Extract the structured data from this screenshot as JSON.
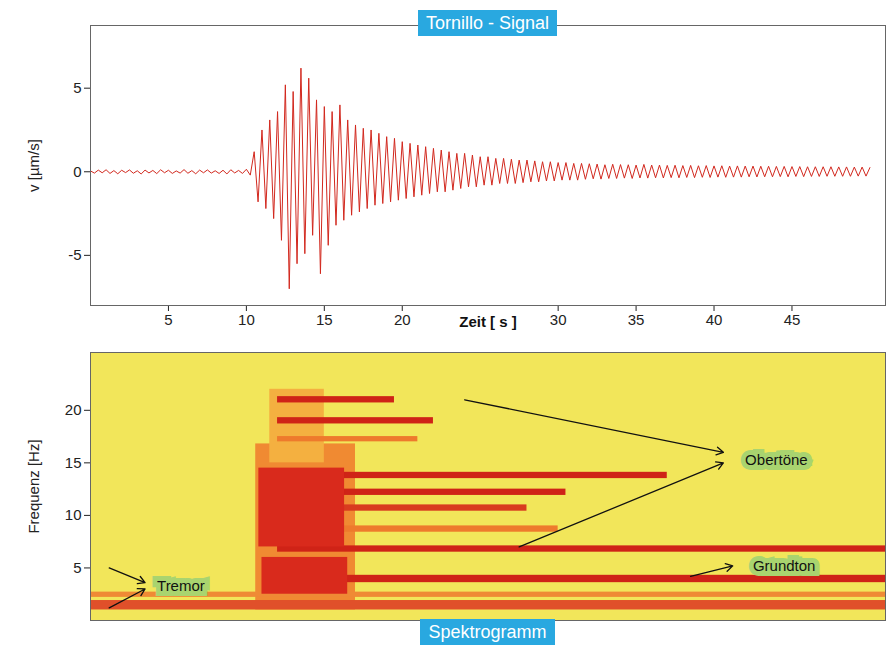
{
  "chart_data": [
    {
      "type": "line",
      "title": "Tornillo - Signal",
      "x_label": "Zeit [ s ]",
      "y_label": "v [µm/s]",
      "x": [
        0,
        0.25,
        0.5,
        0.75,
        1,
        1.25,
        1.5,
        1.75,
        2,
        2.25,
        2.5,
        2.75,
        3,
        3.25,
        3.5,
        3.75,
        4,
        4.25,
        4.5,
        4.75,
        5,
        5.25,
        5.5,
        5.75,
        6,
        6.25,
        6.5,
        6.75,
        7,
        7.25,
        7.5,
        7.75,
        8,
        8.25,
        8.5,
        8.75,
        9,
        9.25,
        9.5,
        9.75,
        10,
        10.25,
        10.5,
        10.75,
        11,
        11.25,
        11.5,
        11.75,
        12,
        12.25,
        12.5,
        12.75,
        13,
        13.25,
        13.5,
        13.75,
        14,
        14.25,
        14.5,
        14.75,
        15,
        15.25,
        15.5,
        15.75,
        16,
        16.25,
        16.5,
        16.75,
        17,
        17.25,
        17.5,
        17.75,
        18,
        18.25,
        18.5,
        18.75,
        19,
        19.25,
        19.5,
        19.75,
        20,
        20.25,
        20.5,
        20.75,
        21,
        21.25,
        21.5,
        21.75,
        22,
        22.25,
        22.5,
        22.75,
        23,
        23.25,
        23.5,
        23.75,
        24,
        24.25,
        24.5,
        24.75,
        25,
        25.25,
        25.5,
        25.75,
        26,
        26.25,
        26.5,
        26.75,
        27,
        27.25,
        27.5,
        27.75,
        28,
        28.25,
        28.5,
        28.75,
        29,
        29.25,
        29.5,
        29.75,
        30,
        30.25,
        30.5,
        30.75,
        31,
        31.25,
        31.5,
        31.75,
        32,
        32.25,
        32.5,
        32.75,
        33,
        33.25,
        33.5,
        33.75,
        34,
        34.25,
        34.5,
        34.75,
        35,
        35.25,
        35.5,
        35.75,
        36,
        36.25,
        36.5,
        36.75,
        37,
        37.25,
        37.5,
        37.75,
        38,
        38.25,
        38.5,
        38.75,
        39,
        39.25,
        39.5,
        39.75,
        40,
        40.25,
        40.5,
        40.75,
        41,
        41.25,
        41.5,
        41.75,
        42,
        42.25,
        42.5,
        42.75,
        43,
        43.25,
        43.5,
        43.75,
        44,
        44.25,
        44.5,
        44.75,
        45,
        45.25,
        45.5,
        45.75,
        46,
        46.25,
        46.5,
        46.75,
        47,
        47.25,
        47.5,
        47.75,
        48,
        48.25,
        48.5,
        48.75,
        49,
        49.25,
        49.5,
        49.75,
        50
      ],
      "values": [
        0.05,
        -0.08,
        0.1,
        -0.06,
        0.12,
        -0.1,
        0.07,
        -0.12,
        0.09,
        -0.05,
        0.11,
        -0.09,
        0.06,
        -0.13,
        0.1,
        -0.07,
        0.08,
        -0.11,
        0.12,
        -0.06,
        0.09,
        -0.1,
        0.05,
        -0.08,
        0.13,
        -0.09,
        0.07,
        -0.12,
        0.1,
        -0.06,
        0.11,
        -0.08,
        0.06,
        -0.1,
        0.09,
        -0.13,
        0.12,
        -0.07,
        0.08,
        -0.1,
        0.15,
        -0.2,
        1.2,
        -1.8,
        2.5,
        -2.2,
        3.1,
        -2.8,
        3.6,
        -4.1,
        5.2,
        -7.0,
        4.8,
        -5.5,
        6.2,
        -4.9,
        5.6,
        -3.8,
        4.3,
        -6.1,
        3.9,
        -4.4,
        3.6,
        -3.2,
        4.0,
        -2.9,
        3.1,
        -2.6,
        2.8,
        -2.4,
        2.6,
        -2.2,
        2.5,
        -2.0,
        2.3,
        -1.9,
        2.1,
        -1.8,
        2.0,
        -1.7,
        1.8,
        -1.6,
        1.7,
        -1.5,
        1.6,
        -1.4,
        1.5,
        -1.3,
        1.4,
        -1.2,
        1.3,
        -1.2,
        1.2,
        -1.1,
        1.1,
        -1.0,
        1.1,
        -0.9,
        1.0,
        -0.9,
        0.9,
        -0.8,
        0.9,
        -0.8,
        0.8,
        -0.7,
        0.8,
        -0.7,
        0.75,
        -0.7,
        0.7,
        -0.65,
        0.7,
        -0.6,
        0.65,
        -0.6,
        0.6,
        -0.55,
        0.6,
        -0.55,
        0.55,
        -0.5,
        0.55,
        -0.5,
        0.5,
        -0.5,
        0.5,
        -0.45,
        0.48,
        -0.42,
        0.46,
        -0.44,
        0.42,
        -0.4,
        0.45,
        -0.4,
        0.43,
        -0.38,
        0.42,
        -0.4,
        0.4,
        -0.37,
        0.44,
        -0.38,
        0.4,
        -0.36,
        0.4,
        -0.37,
        0.38,
        -0.35,
        0.39,
        -0.36,
        0.37,
        -0.34,
        0.38,
        -0.35,
        0.36,
        -0.33,
        0.37,
        -0.34,
        0.35,
        -0.32,
        0.36,
        -0.33,
        0.34,
        -0.32,
        0.35,
        -0.32,
        0.34,
        -0.3,
        0.34,
        -0.31,
        0.33,
        -0.3,
        0.33,
        -0.3,
        0.32,
        -0.29,
        0.32,
        -0.3,
        0.31,
        -0.28,
        0.31,
        -0.29,
        0.3,
        -0.28,
        0.3,
        -0.28,
        0.3,
        -0.27,
        0.3,
        -0.27,
        0.29,
        -0.27,
        0.29,
        -0.27,
        0.28,
        -0.26,
        0.28,
        -0.26,
        0.25
      ],
      "color": "#d2281e",
      "xlim": [
        0,
        51
      ],
      "xticks": [
        5,
        10,
        15,
        20,
        30,
        35,
        40,
        45
      ],
      "ylim": [
        -8,
        8.75
      ],
      "yticks": [
        -5,
        0,
        5
      ],
      "grid": false
    },
    {
      "type": "spectrogram",
      "title": "Spektrogramm",
      "y_label": "Frequenz [Hz]",
      "color": "#f2e65a",
      "cells": [
        {
          "t0": 10.6,
          "t1": 17,
          "f0": 1,
          "f1": 16.8,
          "color": "#f08a32"
        },
        {
          "t0": 11.5,
          "t1": 15,
          "f0": 15,
          "f1": 22,
          "color": "#f4b040"
        },
        {
          "t0": 0,
          "t1": 51,
          "f0": 1,
          "f1": 1.9,
          "color": "#e0502a"
        },
        {
          "t0": 0,
          "t1": 51,
          "f0": 2.2,
          "f1": 2.7,
          "color": "#ef8a35"
        },
        {
          "t0": 12,
          "t1": 19.5,
          "f0": 20.7,
          "f1": 21.3,
          "color": "#cf2317"
        },
        {
          "t0": 12,
          "t1": 22,
          "f0": 18.7,
          "f1": 19.3,
          "color": "#cf2317"
        },
        {
          "t0": 12,
          "t1": 21,
          "f0": 17,
          "f1": 17.5,
          "color": "#ee7a2c"
        },
        {
          "t0": 12,
          "t1": 37,
          "f0": 13.5,
          "f1": 14.1,
          "color": "#cf2317"
        },
        {
          "t0": 12,
          "t1": 30.5,
          "f0": 11.9,
          "f1": 12.5,
          "color": "#cf2317"
        },
        {
          "t0": 12,
          "t1": 28,
          "f0": 10.4,
          "f1": 11,
          "color": "#d93b1f"
        },
        {
          "t0": 12,
          "t1": 30,
          "f0": 8.4,
          "f1": 9,
          "color": "#ee7a2c"
        },
        {
          "t0": 12,
          "t1": 51,
          "f0": 6.5,
          "f1": 7.1,
          "color": "#cf2317"
        },
        {
          "t0": 12,
          "t1": 51,
          "f0": 3.6,
          "f1": 4.3,
          "color": "#cf2317"
        },
        {
          "t0": 10.8,
          "t1": 16.3,
          "f0": 7,
          "f1": 14.5,
          "color": "#d92a1c"
        },
        {
          "t0": 11,
          "t1": 16.5,
          "f0": 2.5,
          "f1": 6,
          "color": "#d92a1c"
        }
      ],
      "annotations": [
        {
          "text": "Tremor",
          "x": 5.8,
          "y": 3.3,
          "arrows": [
            {
              "x1": 1.2,
              "y1": 5.0,
              "x2": 3.5,
              "y2": 3.6
            },
            {
              "x1": 1.2,
              "y1": 1.2,
              "x2": 3.5,
              "y2": 3.0
            }
          ]
        },
        {
          "text": "Obertöne",
          "x": 44,
          "y": 15.3,
          "arrows": [
            {
              "x1": 24,
              "y1": 21,
              "x2": 40.6,
              "y2": 16.0
            },
            {
              "x1": 27.5,
              "y1": 7,
              "x2": 40.6,
              "y2": 15.0
            }
          ]
        },
        {
          "text": "Grundton",
          "x": 44.5,
          "y": 5.2,
          "arrows": [
            {
              "x1": 38.5,
              "y1": 4.2,
              "x2": 41.2,
              "y2": 5.2
            }
          ]
        }
      ],
      "xlim": [
        0,
        51
      ],
      "xticks": [
        5,
        10,
        15,
        20,
        30,
        35,
        40,
        45
      ],
      "ylim": [
        0,
        25.5
      ],
      "yticks": [
        5,
        10,
        15,
        20
      ],
      "tick_labels": "y"
    }
  ]
}
